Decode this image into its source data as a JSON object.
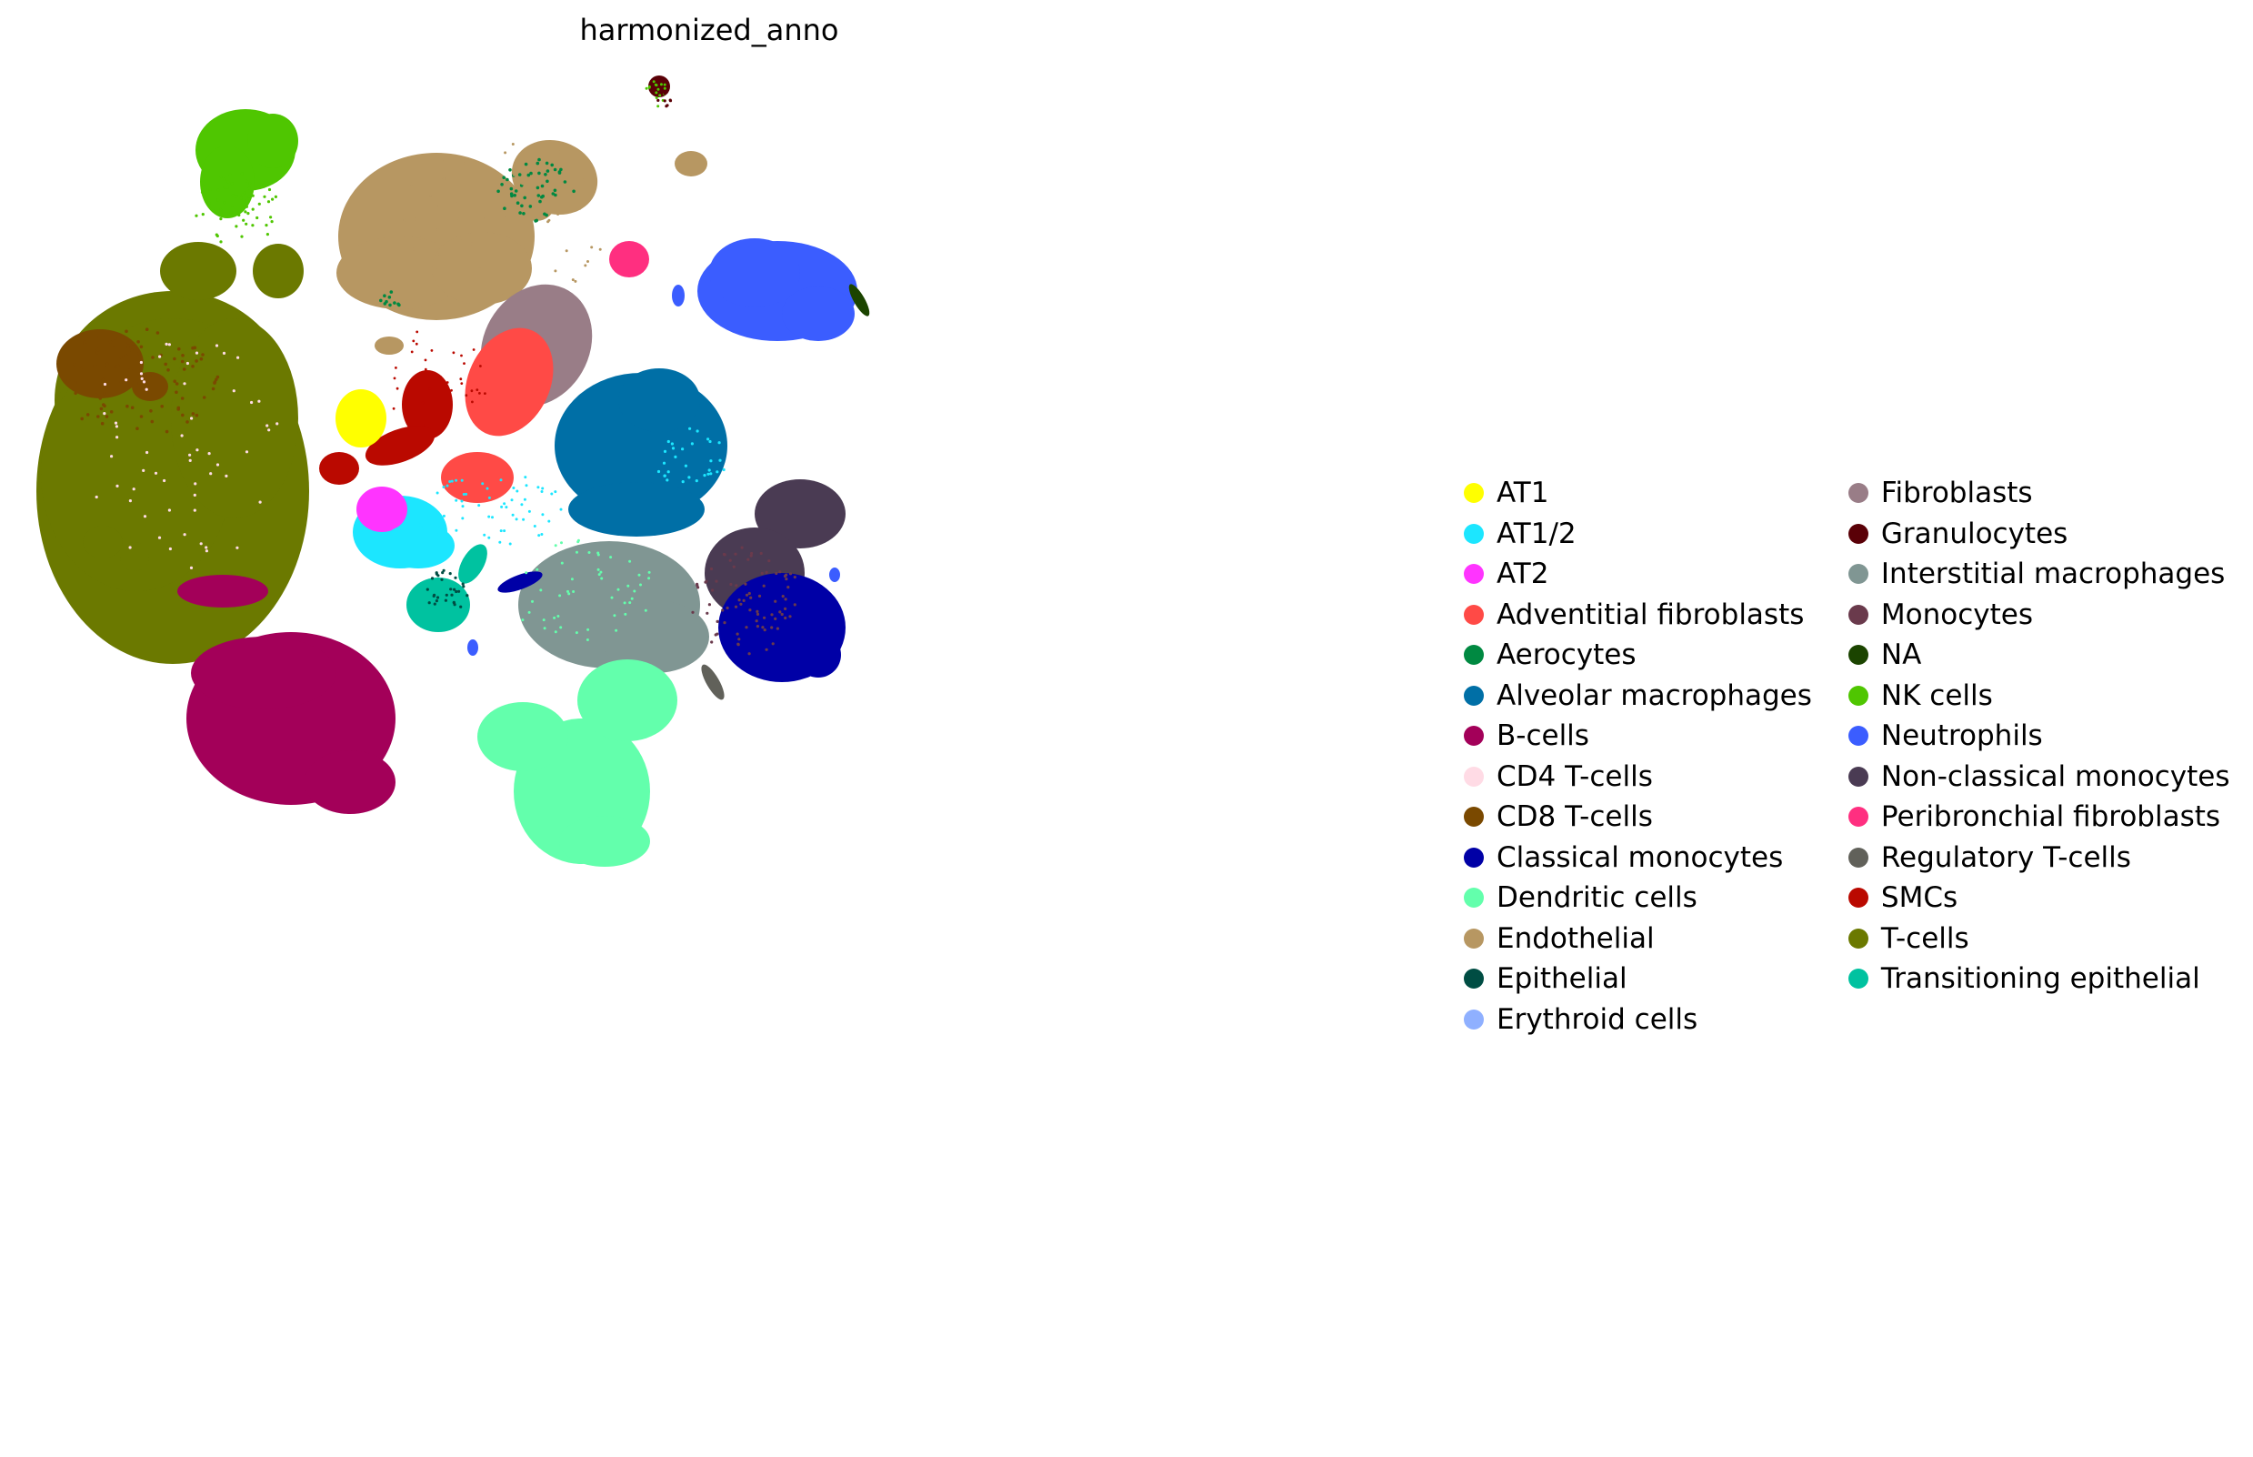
{
  "chart_data": {
    "type": "scatter",
    "title": "harmonized_anno",
    "xlabel": "",
    "ylabel": "",
    "grid": false,
    "axes_visible": false,
    "legend_position": "right",
    "legend_columns": 2,
    "categories": [
      {
        "name": "AT1",
        "color": "#ffff00"
      },
      {
        "name": "AT1/2",
        "color": "#1ce6ff"
      },
      {
        "name": "AT2",
        "color": "#ff34ff"
      },
      {
        "name": "Adventitial fibroblasts",
        "color": "#ff4a46"
      },
      {
        "name": "Aerocytes",
        "color": "#008941"
      },
      {
        "name": "Alveolar macrophages",
        "color": "#006fa6"
      },
      {
        "name": "B-cells",
        "color": "#a30059"
      },
      {
        "name": "CD4 T-cells",
        "color": "#ffdbe5"
      },
      {
        "name": "CD8 T-cells",
        "color": "#7a4900"
      },
      {
        "name": "Classical monocytes",
        "color": "#0000a6"
      },
      {
        "name": "Dendritic cells",
        "color": "#63ffac"
      },
      {
        "name": "Endothelial",
        "color": "#b79762"
      },
      {
        "name": "Epithelial",
        "color": "#004d43"
      },
      {
        "name": "Erythroid cells",
        "color": "#8fb0ff"
      },
      {
        "name": "Fibroblasts",
        "color": "#997d87"
      },
      {
        "name": "Granulocytes",
        "color": "#5a0007"
      },
      {
        "name": "Interstitial macrophages",
        "color": "#809693"
      },
      {
        "name": "Monocytes",
        "color": "#6a3a4c"
      },
      {
        "name": "NA",
        "color": "#1b4400"
      },
      {
        "name": "NK cells",
        "color": "#4fc601"
      },
      {
        "name": "Neutrophils",
        "color": "#3b5dff"
      },
      {
        "name": "Non-classical monocytes",
        "color": "#4a3b53"
      },
      {
        "name": "Peribronchial fibroblasts",
        "color": "#ff2f80"
      },
      {
        "name": "Regulatory T-cells",
        "color": "#61615a"
      },
      {
        "name": "SMCs",
        "color": "#ba0900"
      },
      {
        "name": "T-cells",
        "color": "#6b7900"
      },
      {
        "name": "Transitioning epithelial",
        "color": "#00c2a0"
      }
    ]
  }
}
